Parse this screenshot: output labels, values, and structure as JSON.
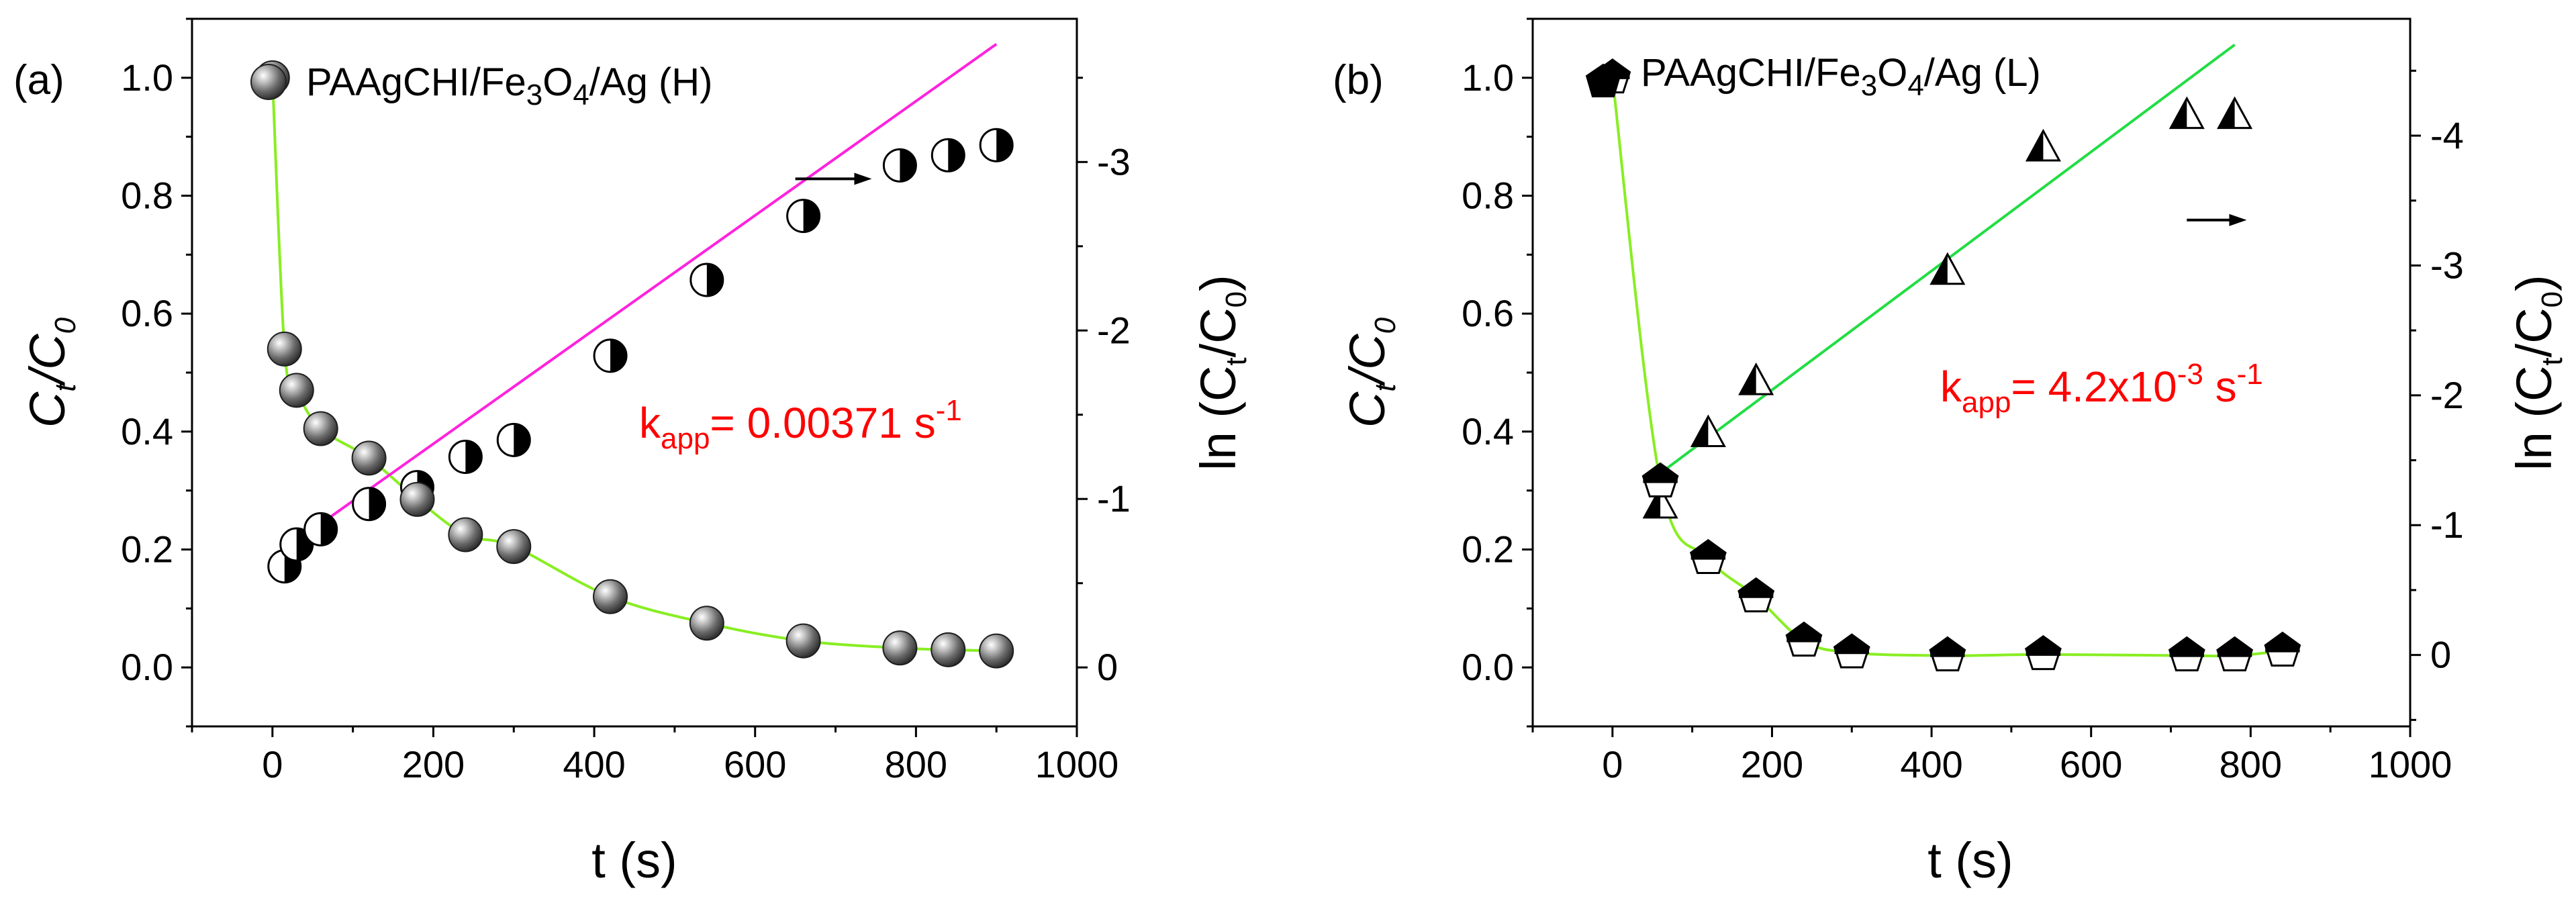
{
  "chart_data": [
    {
      "type": "scatter",
      "panel_label": "(a)",
      "legend": {
        "name": "PAAgCHI/Fe3O4/Ag (H)",
        "base": "PAAgCHI/Fe",
        "sub": "3",
        "rest": "O",
        "sub2": "4",
        "tail": "/Ag (H)"
      },
      "xlabel": "t (s)",
      "ylabel_left": {
        "main": "C",
        "sub": "t",
        "slash": "/C",
        "sub2": "0"
      },
      "ylabel_right": {
        "pre": "ln (C",
        "sub": "t",
        "mid": "/C",
        "sub2": "0",
        "post": ")"
      },
      "xlim": [
        -100,
        1000
      ],
      "xticks": [
        0,
        200,
        400,
        600,
        800,
        1000
      ],
      "xtick_labels": [
        "0",
        "200",
        "400",
        "600",
        "800",
        "1000"
      ],
      "ylim_left": [
        -0.1,
        1.1
      ],
      "yticks_left": [
        0.0,
        0.2,
        0.4,
        0.6,
        0.8,
        1.0
      ],
      "ytick_labels_left": [
        "0.0",
        "0.2",
        "0.4",
        "0.6",
        "0.8",
        "1.0"
      ],
      "ylim_right": [
        0.35,
        -3.85
      ],
      "yticks_right": [
        0,
        -1,
        -2,
        -3
      ],
      "ytick_labels_right": [
        "0",
        "-1",
        "-2",
        "-3"
      ],
      "series": [
        {
          "role": "ct_c0",
          "axis": "left",
          "marker": "sphere",
          "x": [
            0,
            15,
            30,
            60,
            120,
            180,
            240,
            300,
            420,
            540,
            660,
            780,
            840,
            900
          ],
          "y": [
            1.0,
            0.54,
            0.47,
            0.405,
            0.355,
            0.285,
            0.225,
            0.205,
            0.12,
            0.075,
            0.045,
            0.033,
            0.03,
            0.028
          ]
        },
        {
          "role": "ln",
          "axis": "right",
          "marker": "half-circle",
          "x": [
            15,
            30,
            60,
            120,
            180,
            240,
            300,
            420,
            540,
            660,
            780,
            840,
            900
          ],
          "y": [
            -0.6,
            -0.73,
            -0.82,
            -0.97,
            -1.07,
            -1.25,
            -1.35,
            -1.85,
            -2.3,
            -2.68,
            -2.98,
            -3.04,
            -3.1
          ]
        }
      ],
      "fit_line": {
        "x": [
          15,
          900
        ],
        "y": [
          -0.7,
          -3.7
        ],
        "color": "#ff22dd"
      },
      "smooth_curve": {
        "x": [
          0,
          15,
          30,
          60,
          120,
          180,
          240,
          300,
          420,
          540,
          660,
          780,
          840,
          900
        ],
        "y": [
          1.0,
          0.54,
          0.47,
          0.405,
          0.355,
          0.285,
          0.225,
          0.205,
          0.12,
          0.075,
          0.045,
          0.033,
          0.03,
          0.028
        ],
        "color": "#88ee22"
      },
      "arrow": {
        "x": [
          650,
          740
        ],
        "y_right": -2.9
      },
      "kapp": {
        "prefix": "k",
        "sub": "app",
        "text": "= 0.00371 s",
        "sup": "-1"
      }
    },
    {
      "type": "scatter",
      "panel_label": "(b)",
      "legend": {
        "name": "PAAgCHI/Fe3O4/Ag (L)",
        "base": "PAAgCHI/Fe",
        "sub": "3",
        "rest": "O",
        "sub2": "4",
        "tail": "/Ag (L)"
      },
      "xlabel": "t (s)",
      "ylabel_left": {
        "main": "C",
        "sub": "t",
        "slash": "/C",
        "sub2": "0"
      },
      "ylabel_right": {
        "pre": "ln (C",
        "sub": "t",
        "mid": "/C",
        "sub2": "0",
        "post": ")"
      },
      "xlim": [
        -100,
        1000
      ],
      "xticks": [
        0,
        200,
        400,
        600,
        800,
        1000
      ],
      "xtick_labels": [
        "0",
        "200",
        "400",
        "600",
        "800",
        "1000"
      ],
      "ylim_left": [
        -0.1,
        1.1
      ],
      "yticks_left": [
        0.0,
        0.2,
        0.4,
        0.6,
        0.8,
        1.0
      ],
      "ytick_labels_left": [
        "0.0",
        "0.2",
        "0.4",
        "0.6",
        "0.8",
        "1.0"
      ],
      "ylim_right": [
        0.55,
        -4.9
      ],
      "yticks_right": [
        0,
        -1,
        -2,
        -3,
        -4
      ],
      "ytick_labels_right": [
        "0",
        "-1",
        "-2",
        "-3",
        "-4"
      ],
      "series": [
        {
          "role": "ct_c0",
          "axis": "left",
          "marker": "pentagon",
          "x": [
            0,
            60,
            120,
            180,
            240,
            300,
            420,
            540,
            720,
            780,
            840
          ],
          "y": [
            1.0,
            0.315,
            0.185,
            0.12,
            0.045,
            0.025,
            0.02,
            0.022,
            0.02,
            0.02,
            0.028
          ]
        },
        {
          "role": "ln",
          "axis": "right",
          "marker": "half-triangle",
          "x": [
            60,
            120,
            180,
            420,
            540,
            720,
            780
          ],
          "y": [
            -1.15,
            -1.7,
            -2.1,
            -2.95,
            -3.9,
            -4.15,
            -4.15
          ]
        }
      ],
      "fit_line": {
        "x": [
          60,
          780
        ],
        "y": [
          -1.4,
          -4.7
        ],
        "color": "#22dd44"
      },
      "smooth_curve": {
        "x": [
          0,
          60,
          120,
          180,
          240,
          300,
          420,
          540,
          720,
          780,
          840
        ],
        "y": [
          1.0,
          0.315,
          0.185,
          0.12,
          0.045,
          0.025,
          0.02,
          0.022,
          0.02,
          0.02,
          0.028
        ],
        "color": "#88ee22"
      },
      "arrow": {
        "x": [
          720,
          790
        ],
        "y_right": -3.35
      },
      "kapp": {
        "prefix": "k",
        "sub": "app",
        "text": "= 4.2x10",
        "sup": "-3",
        "unit": " s",
        "sup2": "-1"
      }
    }
  ]
}
